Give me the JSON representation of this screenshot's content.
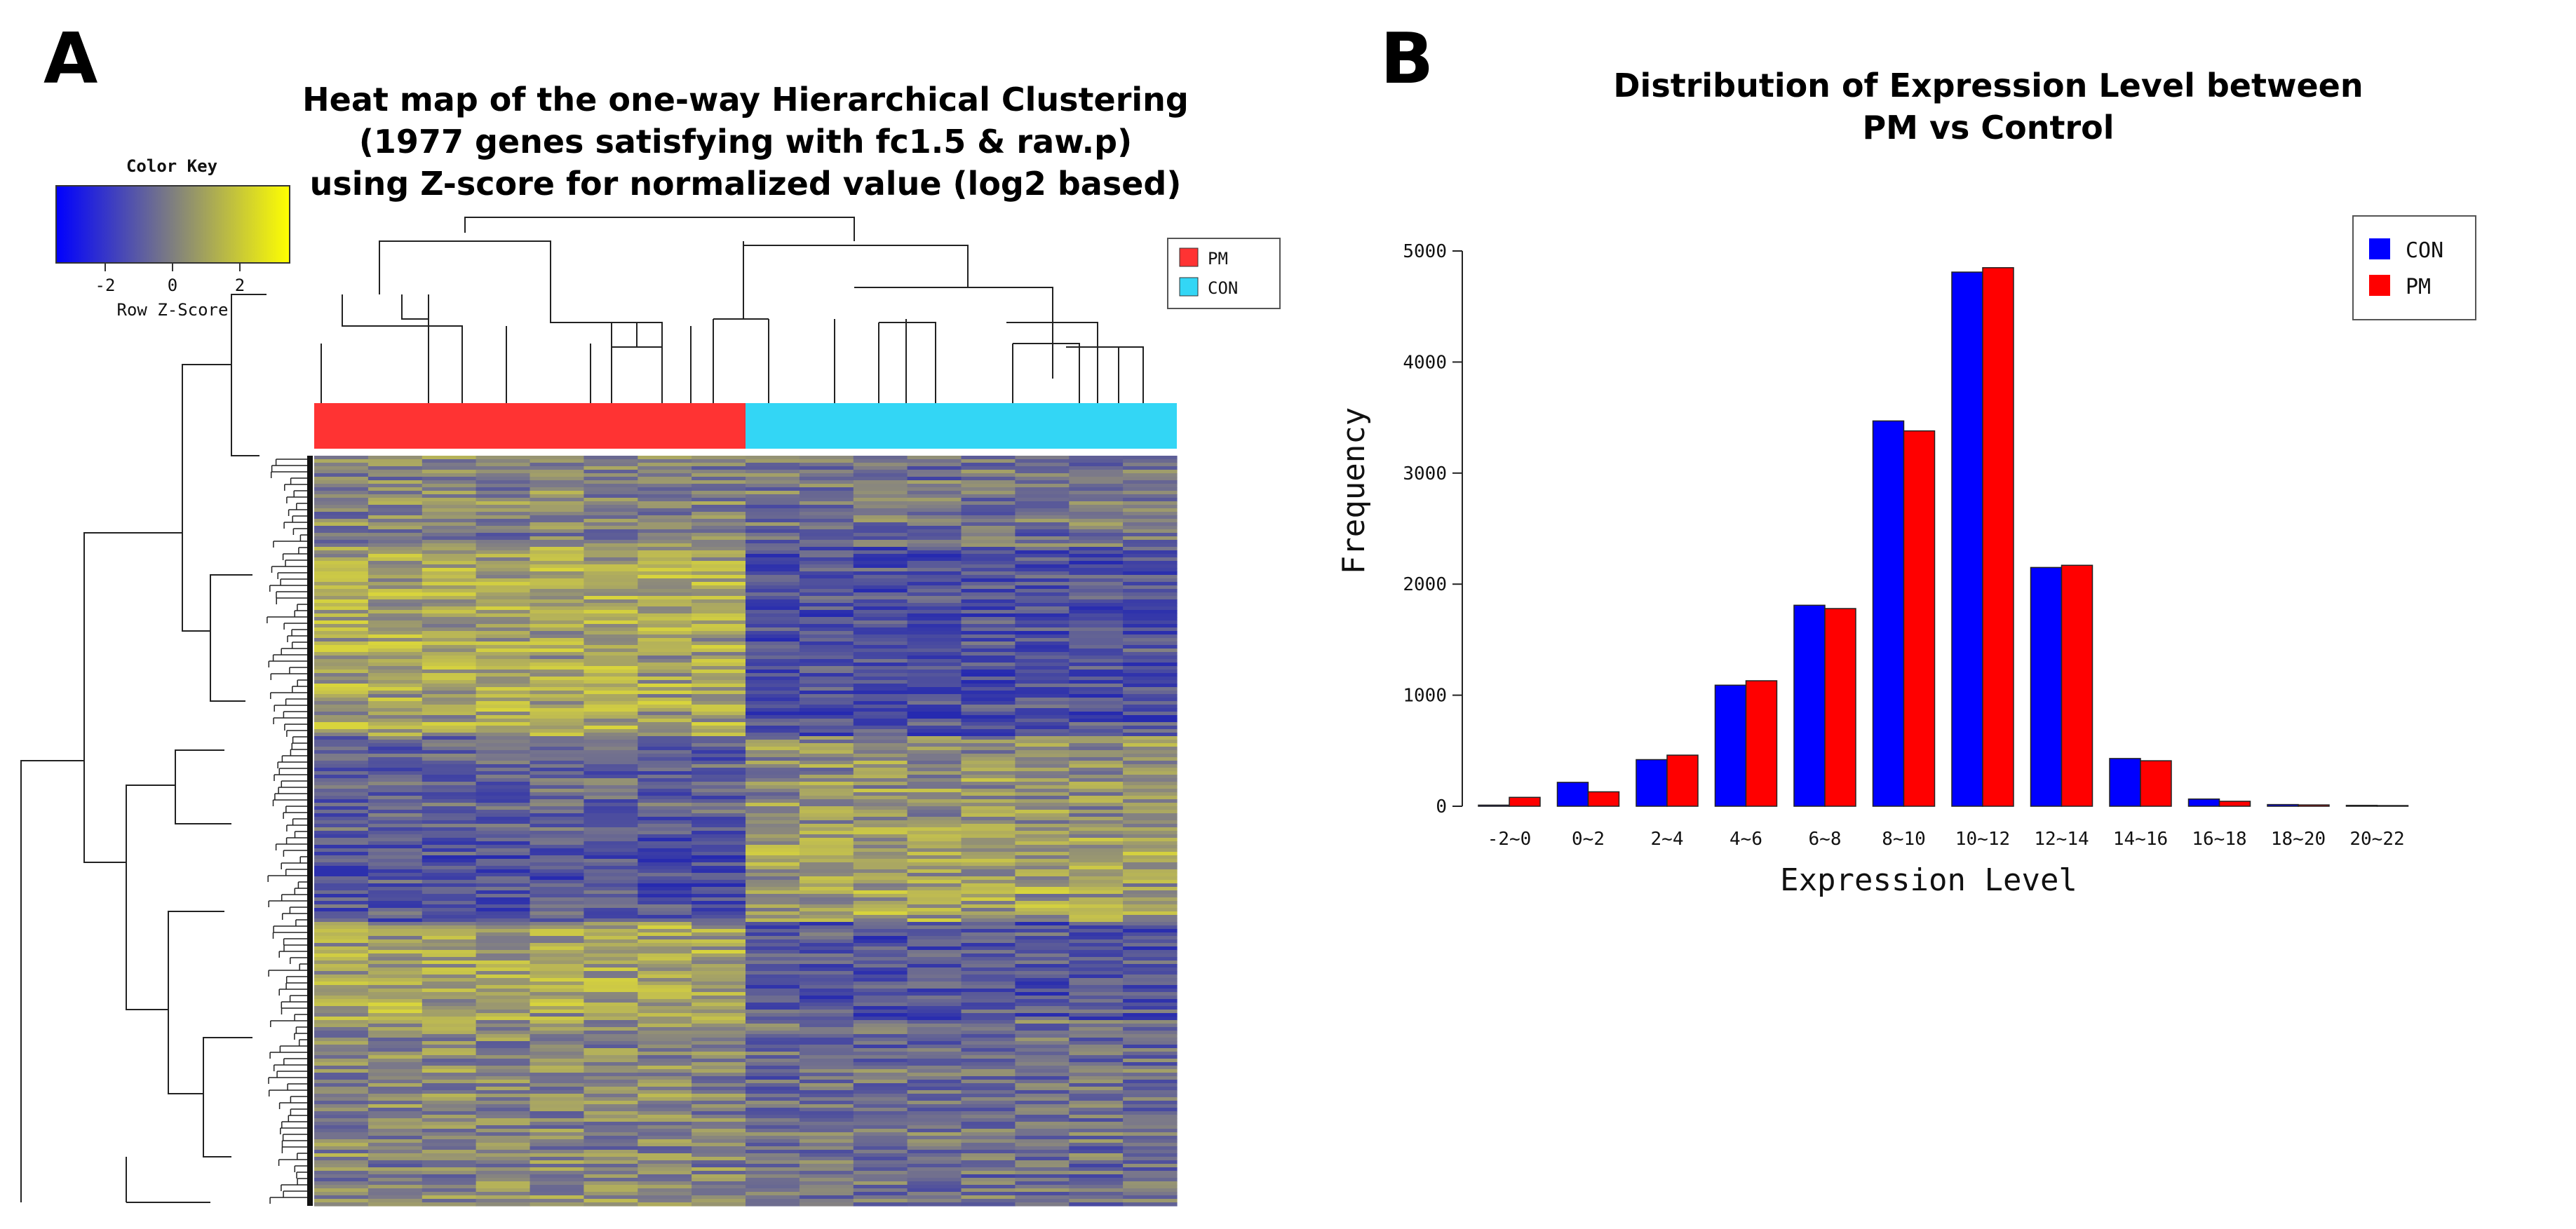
{
  "panels": {
    "a": {
      "letter": "A",
      "title_lines": [
        "Heat map of the one-way Hierarchical Clustering",
        "(1977 genes satisfying with fc1.5 & raw.p)",
        "using Z-score for normalized value (log2 based)"
      ],
      "color_key": {
        "title": "Color Key",
        "ticks": [
          "-2",
          "0",
          "2"
        ],
        "xlabel": "Row Z-Score",
        "low_color": "#0000ff",
        "high_color": "#ffff00"
      },
      "legend": [
        {
          "label": "PM",
          "color": "#ff3333"
        },
        {
          "label": "CON",
          "color": "#33d6f5"
        }
      ],
      "groups": [
        "PM",
        "PM",
        "PM",
        "PM",
        "PM",
        "PM",
        "PM",
        "PM",
        "CON",
        "CON",
        "CON",
        "CON",
        "CON",
        "CON",
        "CON",
        "CON"
      ]
    },
    "b": {
      "letter": "B",
      "title_lines": [
        "Distribution of Expression Level between",
        "PM vs Control"
      ]
    }
  },
  "chart_data": [
    {
      "type": "heatmap",
      "title": "Heat map of the one-way Hierarchical Clustering (1977 genes satisfying with fc1.5 & raw.p) using Z-score for normalized value (log2 based)",
      "columns": 16,
      "genes": 1977,
      "column_groups": [
        "PM",
        "PM",
        "PM",
        "PM",
        "PM",
        "PM",
        "PM",
        "PM",
        "CON",
        "CON",
        "CON",
        "CON",
        "CON",
        "CON",
        "CON",
        "CON"
      ],
      "value_range": [
        -3,
        3
      ],
      "colormap": [
        "#0000ff",
        "#ffff00"
      ]
    },
    {
      "type": "bar",
      "title": "Distribution of Expression Level between PM vs Control",
      "xlabel": "Expression Level",
      "ylabel": "Frequency",
      "categories": [
        "-2~0",
        "0~2",
        "2~4",
        "4~6",
        "6~8",
        "8~10",
        "10~12",
        "12~14",
        "14~16",
        "16~18",
        "18~20",
        "20~22"
      ],
      "series": [
        {
          "name": "CON",
          "color": "#0000ff",
          "values": [
            10,
            215,
            420,
            1090,
            1810,
            3470,
            4810,
            2150,
            430,
            65,
            15,
            8
          ]
        },
        {
          "name": "PM",
          "color": "#ff0000",
          "values": [
            80,
            130,
            460,
            1130,
            1780,
            3380,
            4850,
            2170,
            410,
            45,
            12,
            6
          ]
        }
      ],
      "yticks": [
        0,
        1000,
        2000,
        3000,
        4000,
        5000
      ],
      "ylim": [
        0,
        5000
      ],
      "legend_position": "top-right"
    }
  ]
}
